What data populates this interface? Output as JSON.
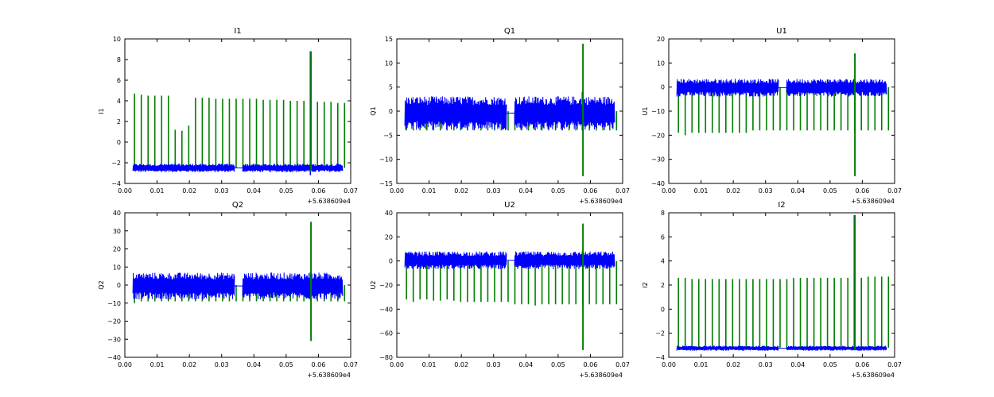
{
  "colors": {
    "blue_series": "#0000ff",
    "green_series": "#007f00",
    "axes": "#000000",
    "background": "#ffffff"
  },
  "chart_data": [
    {
      "type": "line",
      "title": "I1",
      "ylabel": "I1",
      "xlim": [
        0.0,
        0.07
      ],
      "ylim": [
        -4,
        10
      ],
      "xticks": [
        "0.00",
        "0.01",
        "0.02",
        "0.03",
        "0.04",
        "0.05",
        "0.06",
        "0.07"
      ],
      "yticks": [
        "−4",
        "−2",
        "0",
        "2",
        "4",
        "6",
        "8",
        "10"
      ],
      "ytick_values": [
        -4,
        -2,
        0,
        2,
        4,
        6,
        8,
        10
      ],
      "x_offset": "+5.638609e4",
      "series": [
        {
          "color": "blue",
          "band": [
            -2.8,
            -2.2
          ],
          "spike": [
            -3.2,
            8.8
          ]
        },
        {
          "color": "green",
          "base": -2.5,
          "spikes": [
            4.7,
            4.6,
            4.5,
            4.5,
            4.5,
            4.5,
            1.2,
            1.1,
            1.6,
            4.3,
            4.3,
            4.3,
            4.2,
            4.2,
            4.2,
            4.2,
            4.2,
            4.2,
            4.2,
            4.1,
            4.1,
            4.1,
            4.1,
            4.0,
            4.0,
            4.0,
            4.0,
            3.9,
            3.9,
            3.9,
            3.8,
            3.8
          ],
          "spike": [
            -2.8,
            8.8
          ]
        }
      ]
    },
    {
      "type": "line",
      "title": "Q1",
      "ylabel": "Q1",
      "xlim": [
        0.0,
        0.07
      ],
      "ylim": [
        -15,
        15
      ],
      "xticks": [
        "0.00",
        "0.01",
        "0.02",
        "0.03",
        "0.04",
        "0.05",
        "0.06",
        "0.07"
      ],
      "yticks": [
        "−15",
        "−10",
        "−5",
        "0",
        "5",
        "10",
        "15"
      ],
      "ytick_values": [
        -15,
        -10,
        -5,
        0,
        5,
        10,
        15
      ],
      "x_offset": "+5.638609e4",
      "series": [
        {
          "color": "blue",
          "band": [
            -3,
            2.2
          ],
          "spike": [
            -4,
            4
          ]
        },
        {
          "color": "green",
          "base": 0,
          "spikes": [
            -4,
            -4,
            -4,
            -4,
            -4,
            -4,
            -4,
            -4,
            -4,
            -4,
            -4,
            -4,
            -4,
            -4,
            -4,
            -4,
            -4,
            -4,
            -4,
            -4,
            -4,
            -4,
            -4,
            -4,
            -4,
            -4,
            -4,
            -4,
            -4,
            -4,
            -4,
            -4
          ],
          "spike": [
            -13.5,
            14
          ]
        }
      ]
    },
    {
      "type": "line",
      "title": "U1",
      "ylabel": "U1",
      "xlim": [
        0.0,
        0.07
      ],
      "ylim": [
        -40,
        20
      ],
      "xticks": [
        "0.00",
        "0.01",
        "0.02",
        "0.03",
        "0.04",
        "0.05",
        "0.06",
        "0.07"
      ],
      "yticks": [
        "−40",
        "−30",
        "−20",
        "−10",
        "0",
        "10",
        "20"
      ],
      "ytick_values": [
        -40,
        -30,
        -20,
        -10,
        0,
        10,
        20
      ],
      "x_offset": "+5.638609e4",
      "series": [
        {
          "color": "blue",
          "band": [
            -3,
            2.5
          ],
          "spike": [
            -3,
            3
          ]
        },
        {
          "color": "green",
          "base": 0,
          "spikes": [
            -19,
            -20,
            -19,
            -19,
            -19,
            -19,
            -19,
            -19,
            -19,
            -19,
            -19,
            -18,
            -18,
            -18,
            -18,
            -18,
            -18,
            -18,
            -18,
            -18,
            -18,
            -18,
            -18,
            -18,
            -18,
            -18,
            -18,
            -18,
            -18,
            -18,
            -18,
            -18
          ],
          "spike": [
            -37,
            14
          ]
        }
      ]
    },
    {
      "type": "line",
      "title": "Q2",
      "ylabel": "Q2",
      "xlim": [
        0.0,
        0.07
      ],
      "ylim": [
        -40,
        40
      ],
      "xticks": [
        "0.00",
        "0.01",
        "0.02",
        "0.03",
        "0.04",
        "0.05",
        "0.06",
        "0.07"
      ],
      "yticks": [
        "−40",
        "−30",
        "−20",
        "−10",
        "0",
        "10",
        "20",
        "30",
        "40"
      ],
      "ytick_values": [
        -40,
        -30,
        -20,
        -10,
        0,
        10,
        20,
        30,
        40
      ],
      "x_offset": "+5.638609e4",
      "series": [
        {
          "color": "blue",
          "band": [
            -6,
            5
          ],
          "spike": [
            -8,
            7
          ]
        },
        {
          "color": "green",
          "base": 0,
          "spikes": [
            -10,
            -9,
            -9,
            -9,
            -9,
            -9,
            -9,
            -9,
            -9,
            -9,
            -9,
            -9,
            -9,
            -9,
            -9,
            -9,
            -9,
            -9,
            -9,
            -9,
            -9,
            -9,
            -9,
            -9,
            -9,
            -9,
            -9,
            -9,
            -9,
            -9,
            -9,
            -9
          ],
          "spike": [
            -31,
            35
          ]
        }
      ]
    },
    {
      "type": "line",
      "title": "U2",
      "ylabel": "U2",
      "xlim": [
        0.0,
        0.07
      ],
      "ylim": [
        -80,
        40
      ],
      "xticks": [
        "0.00",
        "0.01",
        "0.02",
        "0.03",
        "0.04",
        "0.05",
        "0.06",
        "0.07"
      ],
      "yticks": [
        "−80",
        "−60",
        "−40",
        "−20",
        "0",
        "20",
        "40"
      ],
      "ytick_values": [
        -80,
        -60,
        -40,
        -20,
        0,
        20,
        40
      ],
      "x_offset": "+5.638609e4",
      "series": [
        {
          "color": "blue",
          "band": [
            -5,
            6
          ],
          "spike": [
            -5,
            8
          ]
        },
        {
          "color": "green",
          "base": 0,
          "spikes": [
            -32,
            -34,
            -32,
            -32,
            -33,
            -33,
            -32,
            -33,
            -34,
            -34,
            -34,
            -34,
            -34,
            -34,
            -34,
            -34,
            -36,
            -36,
            -36,
            -37,
            -36,
            -36,
            -36,
            -36,
            -36,
            -36,
            -36,
            -36,
            -36,
            -36,
            -36,
            -36
          ],
          "spike": [
            -74,
            31
          ]
        }
      ]
    },
    {
      "type": "line",
      "title": "I2",
      "ylabel": "I2",
      "xlim": [
        0.0,
        0.07
      ],
      "ylim": [
        -4,
        8
      ],
      "xticks": [
        "0.00",
        "0.01",
        "0.02",
        "0.03",
        "0.04",
        "0.05",
        "0.06",
        "0.07"
      ],
      "yticks": [
        "−4",
        "−2",
        "0",
        "2",
        "4",
        "6",
        "8"
      ],
      "ytick_values": [
        -4,
        -2,
        0,
        2,
        4,
        6,
        8
      ],
      "x_offset": "+5.638609e4",
      "series": [
        {
          "color": "blue",
          "band": [
            -3.4,
            -3.1
          ],
          "spike": [
            -3.4,
            7.8
          ]
        },
        {
          "color": "green",
          "base": -3.2,
          "spikes": [
            2.6,
            2.6,
            2.5,
            2.5,
            2.5,
            2.5,
            2.5,
            2.5,
            2.5,
            2.5,
            2.5,
            2.5,
            2.5,
            2.5,
            2.5,
            2.5,
            2.5,
            2.6,
            2.6,
            2.6,
            2.6,
            2.6,
            2.6,
            2.6,
            2.6,
            2.6,
            2.6,
            2.6,
            2.7,
            2.7,
            2.7,
            2.7
          ],
          "spike": [
            -3.4,
            7.8
          ]
        }
      ]
    }
  ]
}
